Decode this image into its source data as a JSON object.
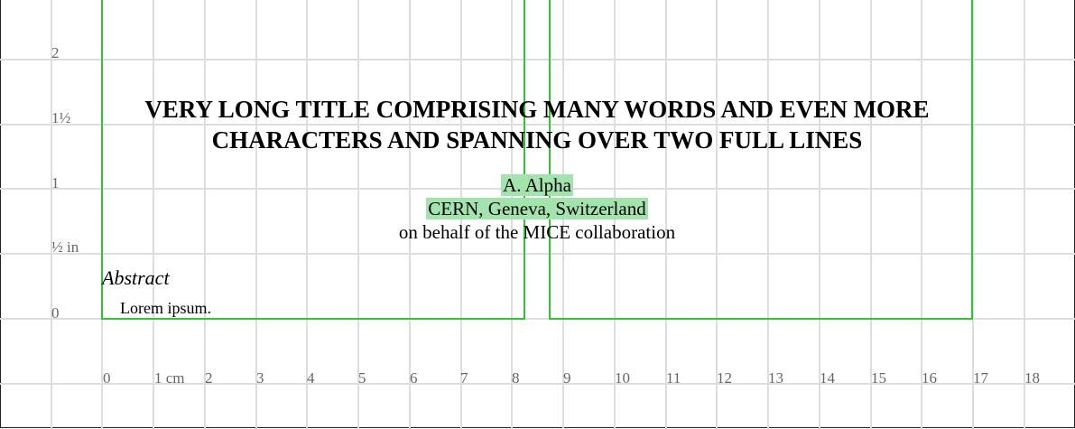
{
  "title": {
    "line1": "VERY LONG TITLE COMPRISING MANY WORDS AND EVEN MORE",
    "line2": "CHARACTERS AND SPANNING OVER TWO FULL LINES"
  },
  "author": "A. Alpha",
  "affiliation": "CERN, Geneva, Switzerland",
  "collaboration": "on behalf of the MICE collaboration",
  "abstract": {
    "heading": "Abstract",
    "body": "Lorem ipsum."
  },
  "ruler": {
    "y_labels": [
      "2",
      "1½",
      "1",
      "½ in",
      "0"
    ],
    "x_labels": [
      "0",
      "1 cm",
      "2",
      "3",
      "4",
      "5",
      "6",
      "7",
      "8",
      "9",
      "10",
      "11",
      "12",
      "13",
      "14",
      "15",
      "16",
      "17",
      "18"
    ]
  },
  "colors": {
    "grid": "#dddddd",
    "column_frame": "#33c33a",
    "highlight": "#a3e3ad"
  }
}
